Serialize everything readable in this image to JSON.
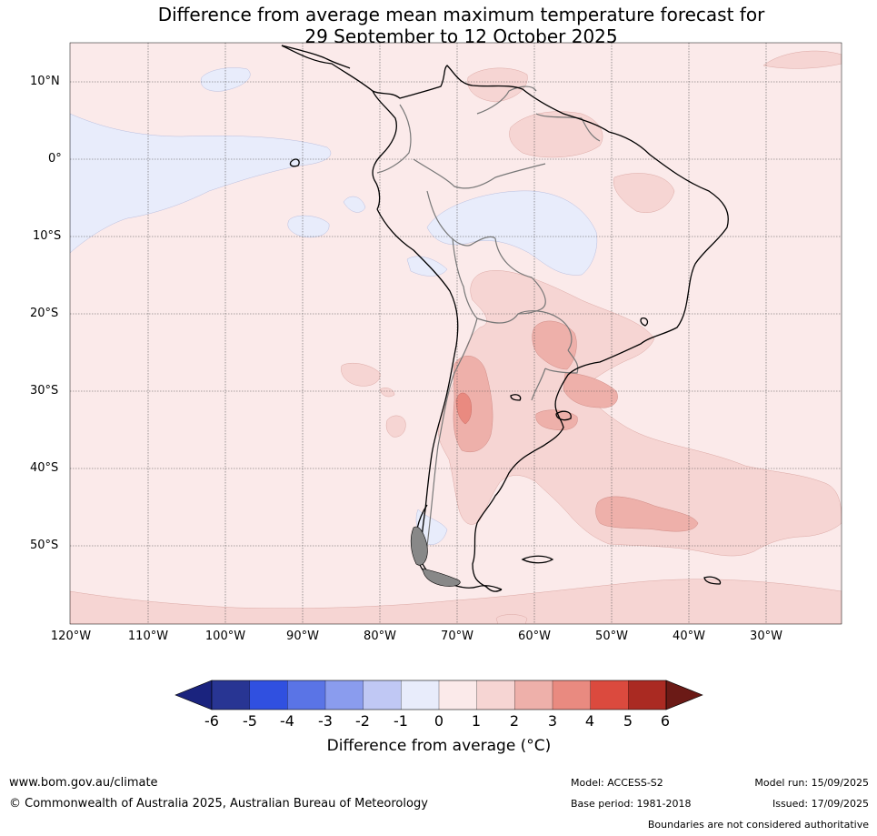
{
  "title": {
    "line1": "Difference from average mean maximum temperature forecast for",
    "line2": "29 September to 12 October 2025"
  },
  "lat_labels": [
    "10°N",
    "0°",
    "10°S",
    "20°S",
    "30°S",
    "40°S",
    "50°S"
  ],
  "lon_labels": [
    "120°W",
    "110°W",
    "100°W",
    "90°W",
    "80°W",
    "70°W",
    "60°W",
    "50°W",
    "40°W",
    "30°W"
  ],
  "colorbar": {
    "ticks": [
      "-6",
      "-5",
      "-4",
      "-3",
      "-2",
      "-1",
      "0",
      "1",
      "2",
      "3",
      "4",
      "5",
      "6"
    ],
    "colors": [
      "#1a237e",
      "#283593",
      "#3050e0",
      "#5a74e6",
      "#8a9cee",
      "#c0c8f4",
      "#e8ecfb",
      "#fbeaea",
      "#f6d5d3",
      "#eeb0aa",
      "#e98a80",
      "#db4a3e",
      "#aa2a22",
      "#6b1a16"
    ],
    "label": "Difference from average (°C)"
  },
  "footer": {
    "url": "www.bom.gov.au/climate",
    "copyright": "© Commonwealth of Australia 2025, Australian Bureau of Meteorology",
    "model": "Model: ACCESS-S2",
    "base_period": "Base period: 1981-2018",
    "model_run": "Model run: 15/09/2025",
    "issued": "Issued: 17/09/2025",
    "disclaimer": "Boundaries are not considered authoritative"
  }
}
